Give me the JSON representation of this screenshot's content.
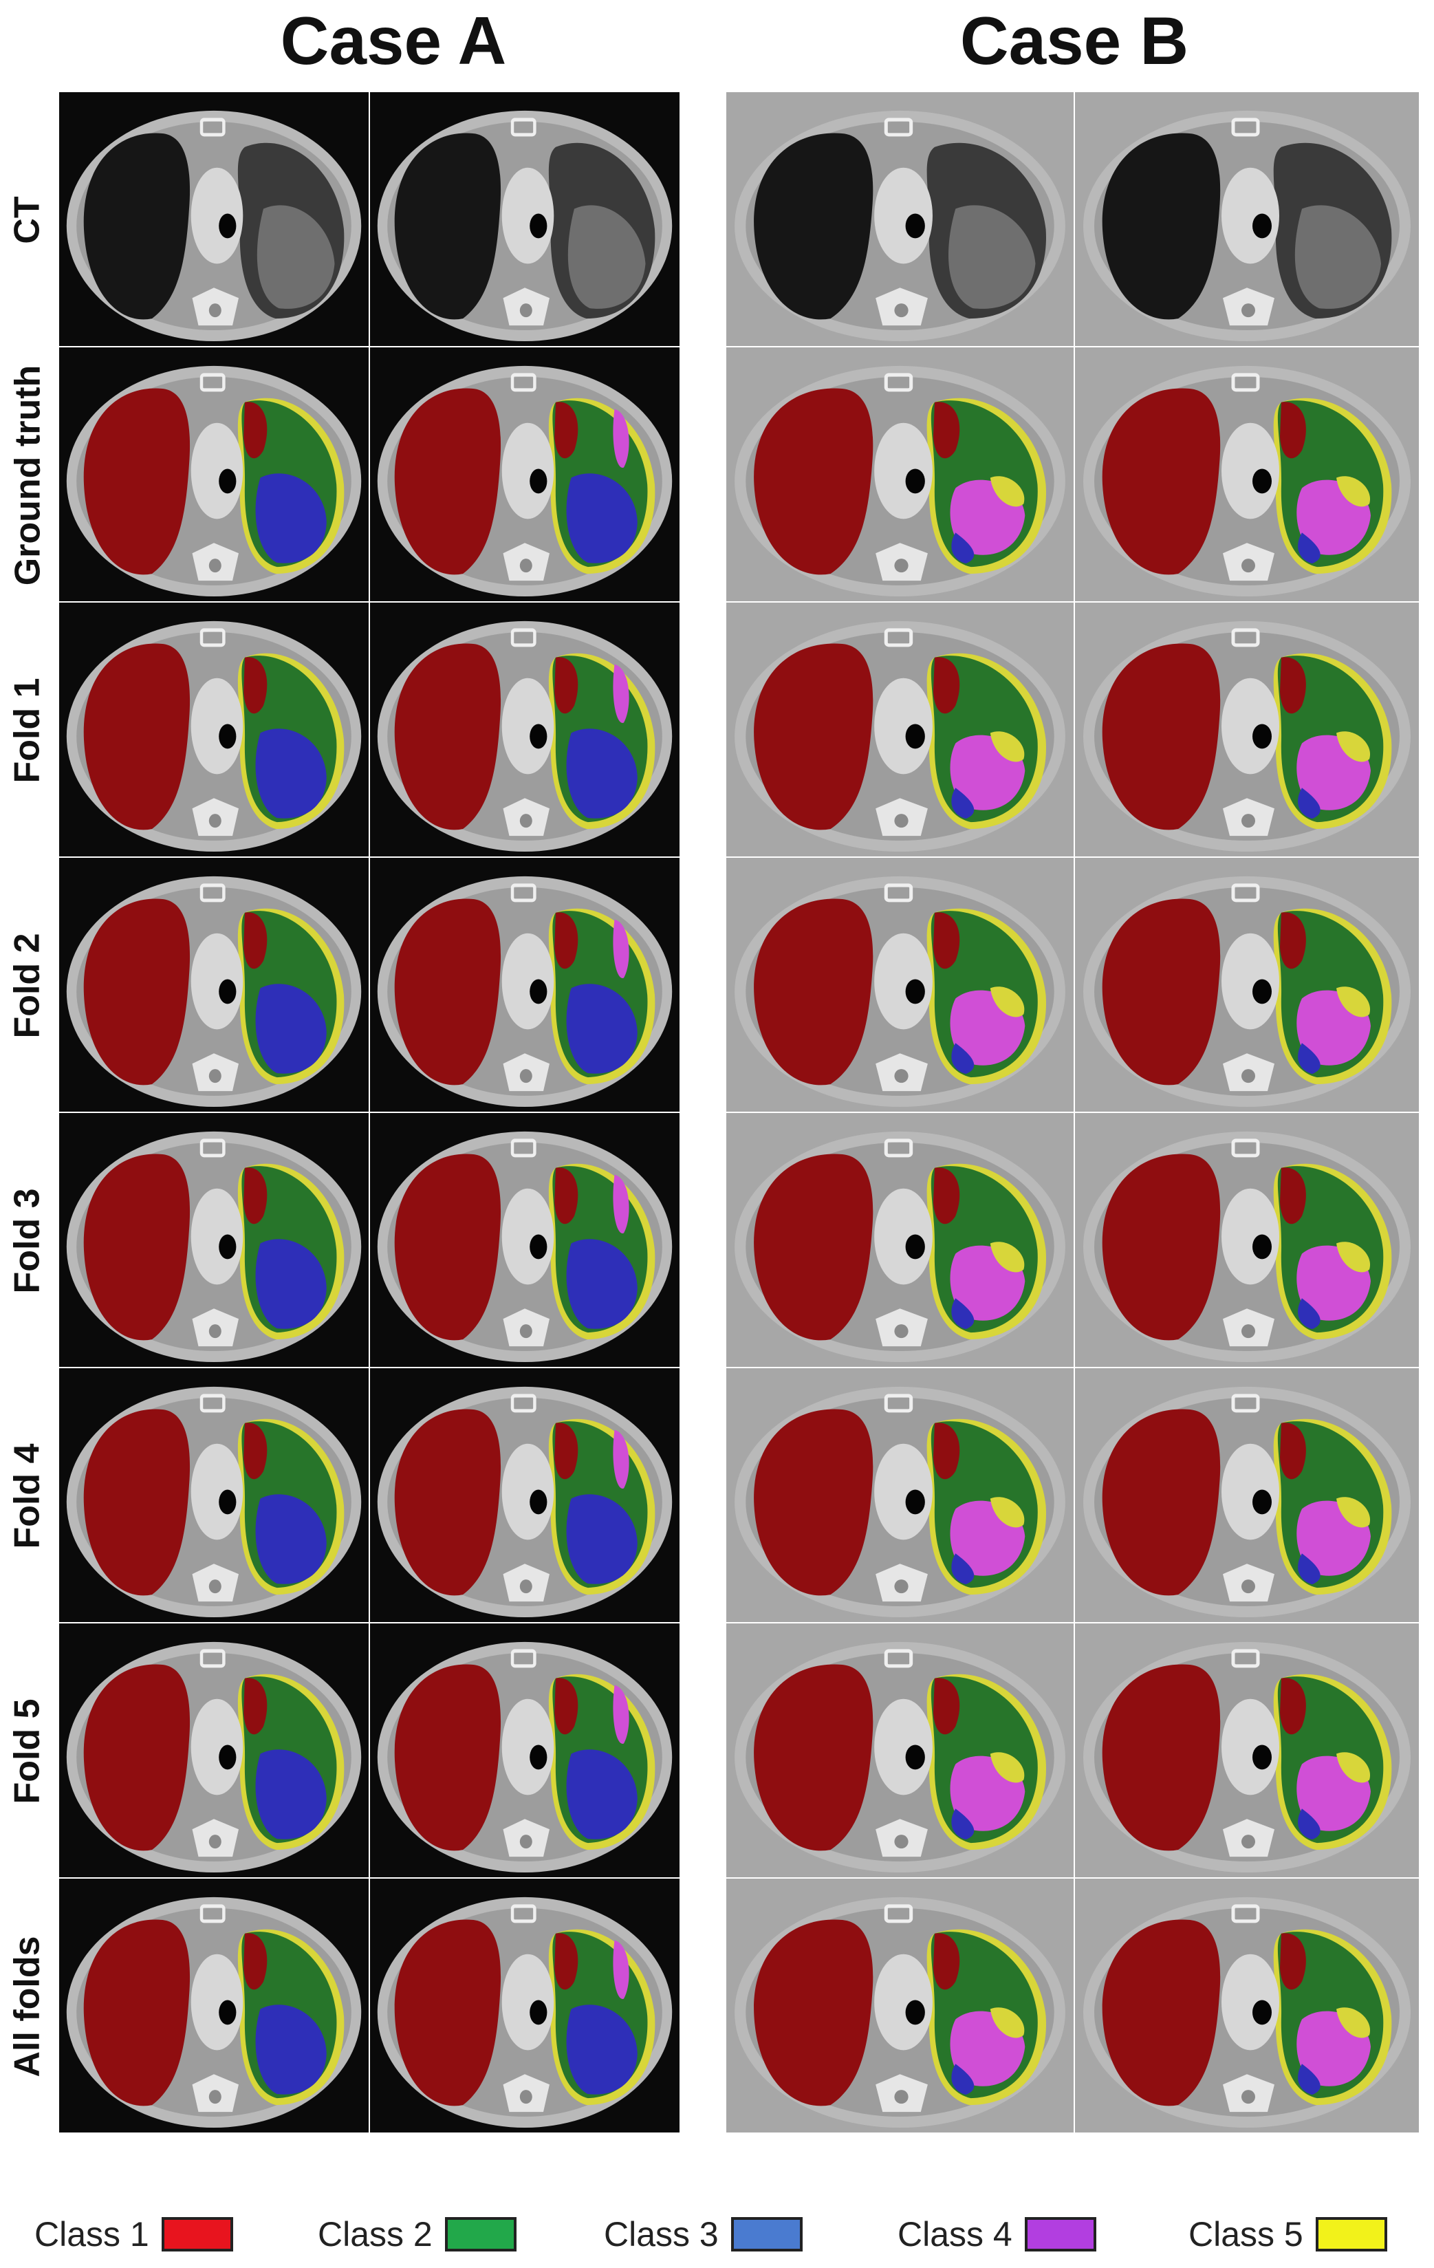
{
  "figure": {
    "case_titles": [
      "Case A",
      "Case B"
    ],
    "row_labels": [
      "CT",
      "Ground truth",
      "Fold 1",
      "Fold 2",
      "Fold 3",
      "Fold 4",
      "Fold 5",
      "All folds"
    ],
    "legend": [
      {
        "label": "Class 1",
        "color": "#e8141e"
      },
      {
        "label": "Class 2",
        "color": "#22a84a"
      },
      {
        "label": "Class 3",
        "color": "#4a7bd0"
      },
      {
        "label": "Class 4",
        "color": "#b23ee0"
      },
      {
        "label": "Class 5",
        "color": "#f2f21a"
      }
    ],
    "overlay_colors": {
      "class1": "#8f0d10",
      "class2": "#27752a",
      "class3": "#2e2fb8",
      "class4": "#d04fd6",
      "class5": "#d8d63a"
    }
  }
}
